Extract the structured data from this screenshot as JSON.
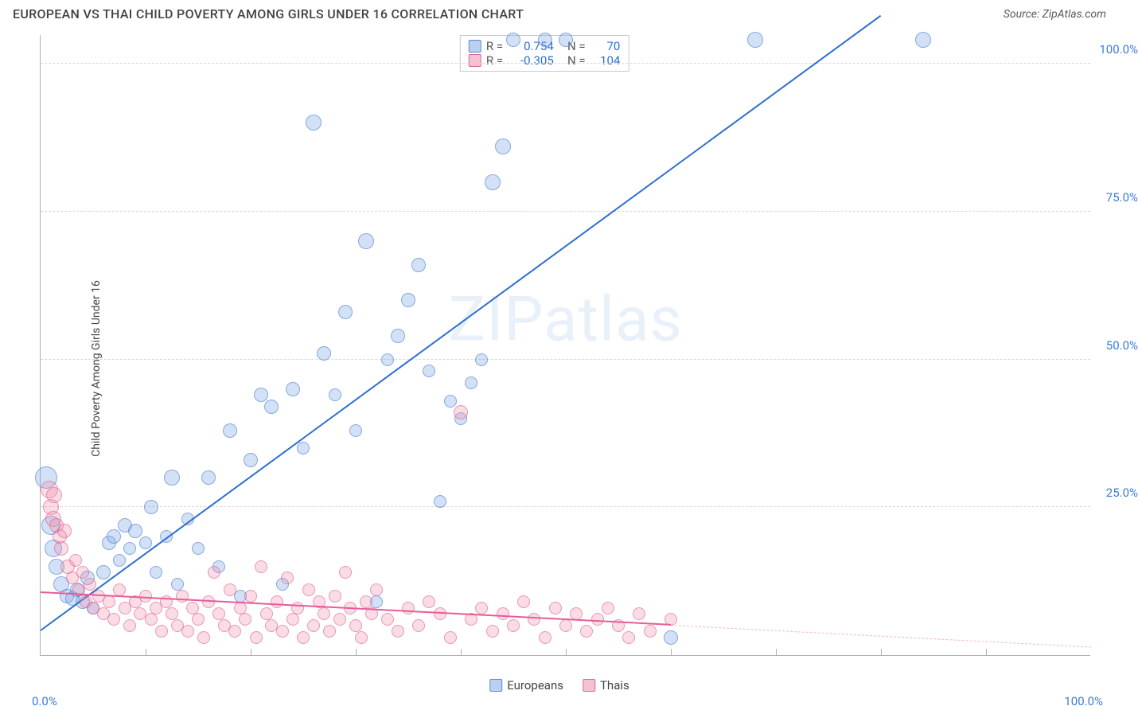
{
  "title": "EUROPEAN VS THAI CHILD POVERTY AMONG GIRLS UNDER 16 CORRELATION CHART",
  "source": "Source: ZipAtlas.com",
  "ylabel": "Child Poverty Among Girls Under 16",
  "watermark": "ZIPatlas",
  "chart": {
    "type": "scatter",
    "xlim": [
      0,
      100
    ],
    "ylim": [
      0,
      105
    ],
    "yticks": [
      {
        "v": 25,
        "label": "25.0%"
      },
      {
        "v": 50,
        "label": "50.0%"
      },
      {
        "v": 75,
        "label": "75.0%"
      },
      {
        "v": 100,
        "label": "100.0%"
      }
    ],
    "xtick_minor_step": 10,
    "xlabel_0": "0.0%",
    "xlabel_100": "100.0%",
    "background_color": "#ffffff",
    "grid_color": "#d8d8d8",
    "marker_base_radius": 8,
    "series": [
      {
        "name": "Europeans",
        "color_fill": "rgba(130,170,230,0.35)",
        "color_stroke": "rgba(70,120,200,0.55)",
        "reg_color": "#2e6fd0",
        "R": "0.754",
        "N": "70",
        "reg": {
          "x1": 0,
          "y1": 4,
          "x2": 80,
          "y2": 108
        },
        "points": [
          {
            "x": 0.5,
            "y": 30,
            "r": 14
          },
          {
            "x": 1,
            "y": 22,
            "r": 12
          },
          {
            "x": 1.2,
            "y": 18,
            "r": 11
          },
          {
            "x": 1.5,
            "y": 15,
            "r": 10
          },
          {
            "x": 2,
            "y": 12,
            "r": 10
          },
          {
            "x": 2.5,
            "y": 10,
            "r": 9
          },
          {
            "x": 3,
            "y": 9.5,
            "r": 9
          },
          {
            "x": 3.5,
            "y": 11,
            "r": 9
          },
          {
            "x": 4,
            "y": 9,
            "r": 9
          },
          {
            "x": 4.5,
            "y": 13,
            "r": 9
          },
          {
            "x": 5,
            "y": 8,
            "r": 8
          },
          {
            "x": 6,
            "y": 14,
            "r": 9
          },
          {
            "x": 6.5,
            "y": 19,
            "r": 9
          },
          {
            "x": 7,
            "y": 20,
            "r": 9
          },
          {
            "x": 7.5,
            "y": 16,
            "r": 8
          },
          {
            "x": 8,
            "y": 22,
            "r": 9
          },
          {
            "x": 8.5,
            "y": 18,
            "r": 8
          },
          {
            "x": 9,
            "y": 21,
            "r": 9
          },
          {
            "x": 10,
            "y": 19,
            "r": 8
          },
          {
            "x": 10.5,
            "y": 25,
            "r": 9
          },
          {
            "x": 11,
            "y": 14,
            "r": 8
          },
          {
            "x": 12,
            "y": 20,
            "r": 8
          },
          {
            "x": 12.5,
            "y": 30,
            "r": 10
          },
          {
            "x": 13,
            "y": 12,
            "r": 8
          },
          {
            "x": 14,
            "y": 23,
            "r": 8
          },
          {
            "x": 15,
            "y": 18,
            "r": 8
          },
          {
            "x": 16,
            "y": 30,
            "r": 9
          },
          {
            "x": 17,
            "y": 15,
            "r": 8
          },
          {
            "x": 18,
            "y": 38,
            "r": 9
          },
          {
            "x": 19,
            "y": 10,
            "r": 8
          },
          {
            "x": 20,
            "y": 33,
            "r": 9
          },
          {
            "x": 21,
            "y": 44,
            "r": 9
          },
          {
            "x": 22,
            "y": 42,
            "r": 9
          },
          {
            "x": 23,
            "y": 12,
            "r": 8
          },
          {
            "x": 24,
            "y": 45,
            "r": 9
          },
          {
            "x": 25,
            "y": 35,
            "r": 8
          },
          {
            "x": 26,
            "y": 90,
            "r": 10
          },
          {
            "x": 27,
            "y": 51,
            "r": 9
          },
          {
            "x": 28,
            "y": 44,
            "r": 8
          },
          {
            "x": 29,
            "y": 58,
            "r": 9
          },
          {
            "x": 30,
            "y": 38,
            "r": 8
          },
          {
            "x": 31,
            "y": 70,
            "r": 10
          },
          {
            "x": 32,
            "y": 9,
            "r": 8
          },
          {
            "x": 33,
            "y": 50,
            "r": 8
          },
          {
            "x": 34,
            "y": 54,
            "r": 9
          },
          {
            "x": 35,
            "y": 60,
            "r": 9
          },
          {
            "x": 36,
            "y": 66,
            "r": 9
          },
          {
            "x": 37,
            "y": 48,
            "r": 8
          },
          {
            "x": 38,
            "y": 26,
            "r": 8
          },
          {
            "x": 39,
            "y": 43,
            "r": 8
          },
          {
            "x": 40,
            "y": 40,
            "r": 8
          },
          {
            "x": 41,
            "y": 46,
            "r": 8
          },
          {
            "x": 42,
            "y": 50,
            "r": 8
          },
          {
            "x": 43,
            "y": 80,
            "r": 10
          },
          {
            "x": 44,
            "y": 86,
            "r": 10
          },
          {
            "x": 45,
            "y": 104,
            "r": 9
          },
          {
            "x": 48,
            "y": 104,
            "r": 9
          },
          {
            "x": 50,
            "y": 104,
            "r": 9
          },
          {
            "x": 60,
            "y": 3,
            "r": 9
          },
          {
            "x": 68,
            "y": 104,
            "r": 10
          },
          {
            "x": 84,
            "y": 104,
            "r": 10
          }
        ]
      },
      {
        "name": "Thais",
        "color_fill": "rgba(240,140,170,0.30)",
        "color_stroke": "rgba(220,80,130,0.50)",
        "reg_color": "#e85b9a",
        "R": "-0.305",
        "N": "104",
        "reg": {
          "x1": 0,
          "y1": 10.5,
          "x2": 60,
          "y2": 5
        },
        "reg_dash": {
          "x1": 60,
          "y1": 5,
          "x2": 100,
          "y2": 1.3
        },
        "points": [
          {
            "x": 0.8,
            "y": 28,
            "r": 11
          },
          {
            "x": 1.0,
            "y": 25,
            "r": 10
          },
          {
            "x": 1.2,
            "y": 23,
            "r": 10
          },
          {
            "x": 1.3,
            "y": 27,
            "r": 10
          },
          {
            "x": 1.5,
            "y": 22,
            "r": 9
          },
          {
            "x": 1.8,
            "y": 20,
            "r": 9
          },
          {
            "x": 2,
            "y": 18,
            "r": 9
          },
          {
            "x": 2.3,
            "y": 21,
            "r": 9
          },
          {
            "x": 2.6,
            "y": 15,
            "r": 9
          },
          {
            "x": 3,
            "y": 13,
            "r": 8
          },
          {
            "x": 3.3,
            "y": 16,
            "r": 8
          },
          {
            "x": 3.6,
            "y": 11,
            "r": 8
          },
          {
            "x": 4,
            "y": 14,
            "r": 8
          },
          {
            "x": 4.3,
            "y": 9,
            "r": 8
          },
          {
            "x": 4.7,
            "y": 12,
            "r": 8
          },
          {
            "x": 5,
            "y": 8,
            "r": 8
          },
          {
            "x": 5.5,
            "y": 10,
            "r": 8
          },
          {
            "x": 6,
            "y": 7,
            "r": 8
          },
          {
            "x": 6.5,
            "y": 9,
            "r": 8
          },
          {
            "x": 7,
            "y": 6,
            "r": 8
          },
          {
            "x": 7.5,
            "y": 11,
            "r": 8
          },
          {
            "x": 8,
            "y": 8,
            "r": 8
          },
          {
            "x": 8.5,
            "y": 5,
            "r": 8
          },
          {
            "x": 9,
            "y": 9,
            "r": 8
          },
          {
            "x": 9.5,
            "y": 7,
            "r": 8
          },
          {
            "x": 10,
            "y": 10,
            "r": 8
          },
          {
            "x": 10.5,
            "y": 6,
            "r": 8
          },
          {
            "x": 11,
            "y": 8,
            "r": 8
          },
          {
            "x": 11.5,
            "y": 4,
            "r": 8
          },
          {
            "x": 12,
            "y": 9,
            "r": 8
          },
          {
            "x": 12.5,
            "y": 7,
            "r": 8
          },
          {
            "x": 13,
            "y": 5,
            "r": 8
          },
          {
            "x": 13.5,
            "y": 10,
            "r": 8
          },
          {
            "x": 14,
            "y": 4,
            "r": 8
          },
          {
            "x": 14.5,
            "y": 8,
            "r": 8
          },
          {
            "x": 15,
            "y": 6,
            "r": 8
          },
          {
            "x": 15.5,
            "y": 3,
            "r": 8
          },
          {
            "x": 16,
            "y": 9,
            "r": 8
          },
          {
            "x": 16.5,
            "y": 14,
            "r": 8
          },
          {
            "x": 17,
            "y": 7,
            "r": 8
          },
          {
            "x": 17.5,
            "y": 5,
            "r": 8
          },
          {
            "x": 18,
            "y": 11,
            "r": 8
          },
          {
            "x": 18.5,
            "y": 4,
            "r": 8
          },
          {
            "x": 19,
            "y": 8,
            "r": 8
          },
          {
            "x": 19.5,
            "y": 6,
            "r": 8
          },
          {
            "x": 20,
            "y": 10,
            "r": 8
          },
          {
            "x": 20.5,
            "y": 3,
            "r": 8
          },
          {
            "x": 21,
            "y": 15,
            "r": 8
          },
          {
            "x": 21.5,
            "y": 7,
            "r": 8
          },
          {
            "x": 22,
            "y": 5,
            "r": 8
          },
          {
            "x": 22.5,
            "y": 9,
            "r": 8
          },
          {
            "x": 23,
            "y": 4,
            "r": 8
          },
          {
            "x": 23.5,
            "y": 13,
            "r": 8
          },
          {
            "x": 24,
            "y": 6,
            "r": 8
          },
          {
            "x": 24.5,
            "y": 8,
            "r": 8
          },
          {
            "x": 25,
            "y": 3,
            "r": 8
          },
          {
            "x": 25.5,
            "y": 11,
            "r": 8
          },
          {
            "x": 26,
            "y": 5,
            "r": 8
          },
          {
            "x": 26.5,
            "y": 9,
            "r": 8
          },
          {
            "x": 27,
            "y": 7,
            "r": 8
          },
          {
            "x": 27.5,
            "y": 4,
            "r": 8
          },
          {
            "x": 28,
            "y": 10,
            "r": 8
          },
          {
            "x": 28.5,
            "y": 6,
            "r": 8
          },
          {
            "x": 29,
            "y": 14,
            "r": 8
          },
          {
            "x": 29.5,
            "y": 8,
            "r": 8
          },
          {
            "x": 30,
            "y": 5,
            "r": 8
          },
          {
            "x": 30.5,
            "y": 3,
            "r": 8
          },
          {
            "x": 31,
            "y": 9,
            "r": 8
          },
          {
            "x": 31.5,
            "y": 7,
            "r": 8
          },
          {
            "x": 32,
            "y": 11,
            "r": 8
          },
          {
            "x": 33,
            "y": 6,
            "r": 8
          },
          {
            "x": 34,
            "y": 4,
            "r": 8
          },
          {
            "x": 35,
            "y": 8,
            "r": 8
          },
          {
            "x": 36,
            "y": 5,
            "r": 8
          },
          {
            "x": 37,
            "y": 9,
            "r": 8
          },
          {
            "x": 38,
            "y": 7,
            "r": 8
          },
          {
            "x": 39,
            "y": 3,
            "r": 8
          },
          {
            "x": 40,
            "y": 41,
            "r": 9
          },
          {
            "x": 41,
            "y": 6,
            "r": 8
          },
          {
            "x": 42,
            "y": 8,
            "r": 8
          },
          {
            "x": 43,
            "y": 4,
            "r": 8
          },
          {
            "x": 44,
            "y": 7,
            "r": 8
          },
          {
            "x": 45,
            "y": 5,
            "r": 8
          },
          {
            "x": 46,
            "y": 9,
            "r": 8
          },
          {
            "x": 47,
            "y": 6,
            "r": 8
          },
          {
            "x": 48,
            "y": 3,
            "r": 8
          },
          {
            "x": 49,
            "y": 8,
            "r": 8
          },
          {
            "x": 50,
            "y": 5,
            "r": 8
          },
          {
            "x": 51,
            "y": 7,
            "r": 8
          },
          {
            "x": 52,
            "y": 4,
            "r": 8
          },
          {
            "x": 53,
            "y": 6,
            "r": 8
          },
          {
            "x": 54,
            "y": 8,
            "r": 8
          },
          {
            "x": 55,
            "y": 5,
            "r": 8
          },
          {
            "x": 56,
            "y": 3,
            "r": 8
          },
          {
            "x": 57,
            "y": 7,
            "r": 8
          },
          {
            "x": 58,
            "y": 4,
            "r": 8
          },
          {
            "x": 60,
            "y": 6,
            "r": 8
          }
        ]
      }
    ],
    "legend_bottom": [
      {
        "label": "Europeans",
        "class": "blue"
      },
      {
        "label": "Thais",
        "class": "pink"
      }
    ]
  }
}
